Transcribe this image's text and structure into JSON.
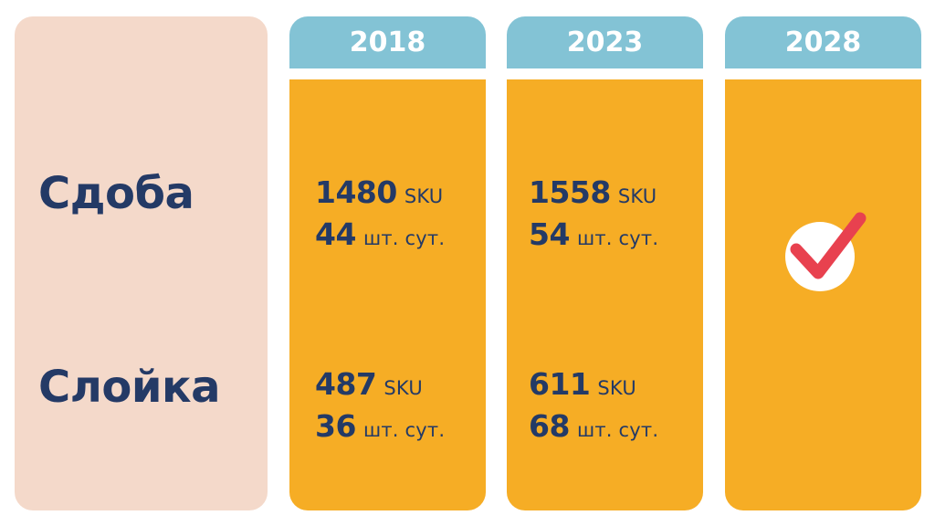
{
  "rows": [
    {
      "label": "Сдоба"
    },
    {
      "label": "Слойка"
    }
  ],
  "columns": [
    {
      "year": "2018",
      "cells": [
        {
          "sku_value": "1480",
          "sku_unit": "SKU",
          "daily_value": "44",
          "daily_unit": "шт. сут."
        },
        {
          "sku_value": "487",
          "sku_unit": "SKU",
          "daily_value": "36",
          "daily_unit": "шт. сут."
        }
      ]
    },
    {
      "year": "2023",
      "cells": [
        {
          "sku_value": "1558",
          "sku_unit": "SKU",
          "daily_value": "54",
          "daily_unit": "шт. сут."
        },
        {
          "sku_value": "611",
          "sku_unit": "SKU",
          "daily_value": "68",
          "daily_unit": "шт. сут."
        }
      ]
    },
    {
      "year": "2028",
      "icon": "checkmark-icon"
    }
  ],
  "colors": {
    "label_panel": "#f4d9ca",
    "header": "#83c3d5",
    "body": "#f6ad25",
    "text": "#243a66",
    "check": "#e8414f"
  }
}
